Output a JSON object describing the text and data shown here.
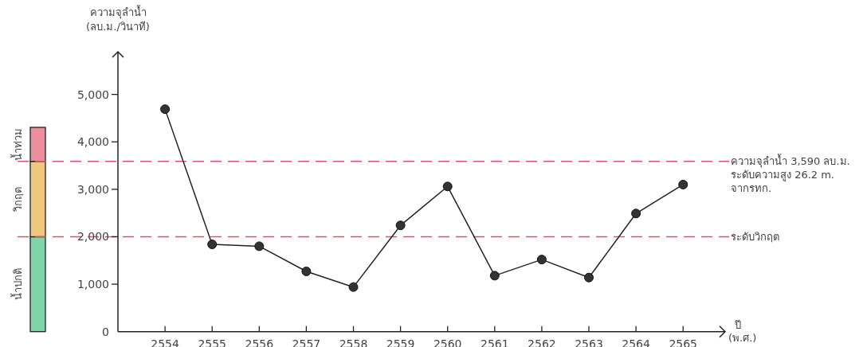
{
  "chart_data": {
    "type": "line",
    "xlabel": "ปี (พ.ศ.)",
    "ylabel": "ความจุลำน้ำ (ลบ.ม./วินาที)",
    "categories": [
      "2554",
      "2555",
      "2556",
      "2557",
      "2558",
      "2559",
      "2560",
      "2561",
      "2562",
      "2563",
      "2564",
      "2565"
    ],
    "series": [
      {
        "color": "#333333",
        "values": [
          4690,
          1840,
          1800,
          1270,
          940,
          2240,
          3060,
          1180,
          1520,
          1140,
          2490,
          3100
        ]
      }
    ],
    "ylim": [
      0,
      5900
    ],
    "yticks": [
      0,
      {
        "value": 1000,
        "label": "1,000"
      },
      {
        "value": 2000,
        "label": "2,000"
      },
      {
        "value": 3000,
        "label": "3,000"
      },
      {
        "value": 4000,
        "label": "4,000"
      },
      {
        "value": 5000,
        "label": "5,000"
      }
    ],
    "marker": "circle",
    "line_style": "solid",
    "ref_lines": [
      {
        "axis": "y",
        "value": 3590,
        "label": "ความจุลำน้ำ 3,590 ลบ.ม. ระดับความสูง 26.2 m. จากรทก.",
        "color": "#d9536a",
        "line_style": "dashed"
      },
      {
        "axis": "y",
        "value": 2000,
        "label": "ระดับวิกฤต",
        "color": "#d9536a",
        "line_style": "dashed"
      }
    ],
    "annotations": [
      "น้ำปกติ",
      "วิกฤต",
      "น้ำท่วม"
    ]
  }
}
